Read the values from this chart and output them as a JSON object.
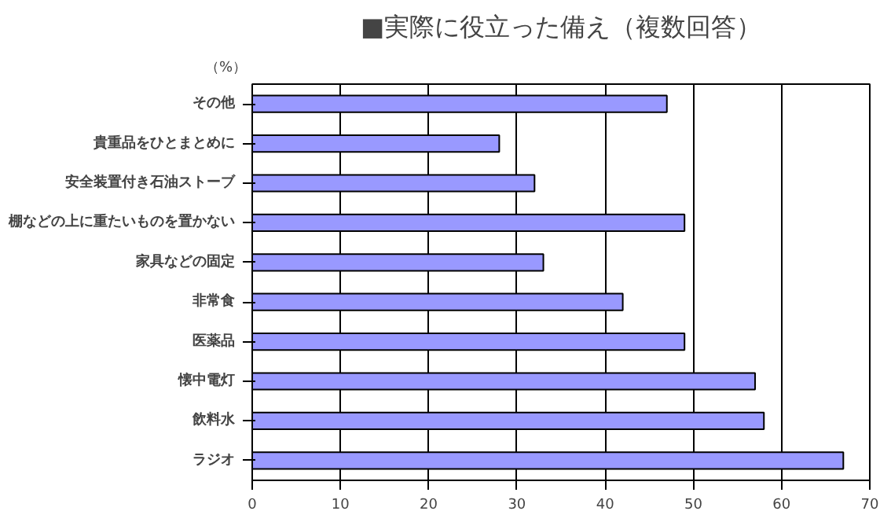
{
  "chart_data": {
    "type": "bar",
    "orientation": "horizontal",
    "title": "■実際に役立った備え（複数回答）",
    "annotations": [
      "（%）"
    ],
    "categories": [
      "その他",
      "貴重品をひとまとめに",
      "安全装置付き石油ストーブ",
      "棚などの上に重たいものを置かない",
      "家具などの固定",
      "非常食",
      "医薬品",
      "懐中電灯",
      "飲料水",
      "ラジオ"
    ],
    "values": [
      47,
      28,
      32,
      49,
      33,
      42,
      49,
      57,
      58,
      67
    ],
    "color": "#9999ff",
    "xlim": [
      0,
      70
    ],
    "xticks": [
      0,
      10,
      20,
      30,
      40,
      50,
      60,
      70
    ],
    "grid": "x"
  }
}
